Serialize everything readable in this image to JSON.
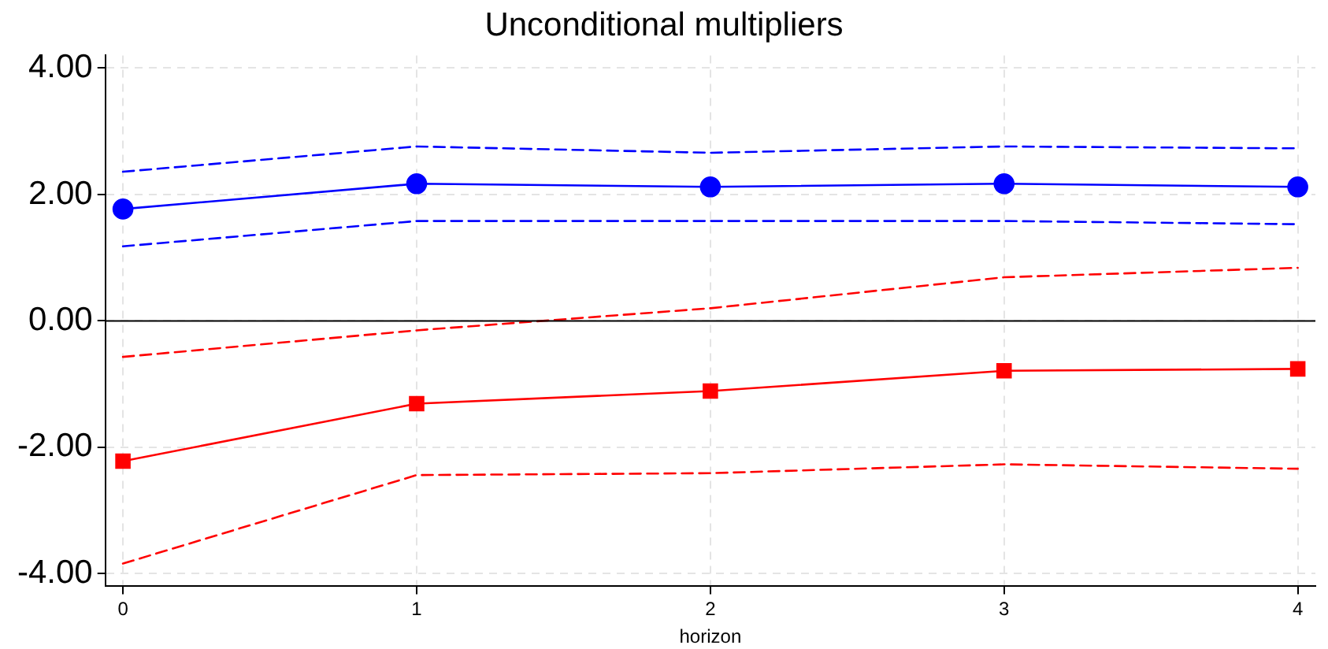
{
  "chart_data": {
    "type": "line",
    "title": "Unconditional multipliers",
    "xlabel": "horizon",
    "x": [
      0,
      1,
      2,
      3,
      4
    ],
    "xlim": [
      -0.06,
      4.06
    ],
    "xticks": [
      0,
      1,
      2,
      3,
      4
    ],
    "ylim": [
      -4.2,
      4.2
    ],
    "yticks": [
      {
        "value": -4,
        "label": "-4.00"
      },
      {
        "value": -2,
        "label": "-2.00"
      },
      {
        "value": 0,
        "label": "0.00"
      },
      {
        "value": 2,
        "label": "2.00"
      },
      {
        "value": 4,
        "label": "4.00"
      }
    ],
    "grid": true,
    "legend": false,
    "ref_lines": [
      {
        "axis": "y",
        "value": 0,
        "color": "#000000"
      }
    ],
    "series": [
      {
        "color": "#0000ff",
        "marker": "circle",
        "line_style": "solid",
        "values": [
          1.77,
          2.17,
          2.12,
          2.17,
          2.12
        ]
      },
      {
        "color": "#0000ff",
        "marker": "none",
        "line_style": "dashed",
        "values": [
          2.36,
          2.76,
          2.66,
          2.76,
          2.73
        ]
      },
      {
        "color": "#0000ff",
        "marker": "none",
        "line_style": "dashed",
        "values": [
          1.18,
          1.58,
          1.58,
          1.58,
          1.53
        ]
      },
      {
        "color": "#ff0000",
        "marker": "square",
        "line_style": "solid",
        "values": [
          -2.22,
          -1.31,
          -1.11,
          -0.79,
          -0.76
        ]
      },
      {
        "color": "#ff0000",
        "marker": "none",
        "line_style": "dashed",
        "values": [
          -0.57,
          -0.15,
          0.2,
          0.69,
          0.84
        ]
      },
      {
        "color": "#ff0000",
        "marker": "none",
        "line_style": "dashed",
        "values": [
          -3.84,
          -2.44,
          -2.41,
          -2.27,
          -2.34
        ]
      }
    ]
  }
}
